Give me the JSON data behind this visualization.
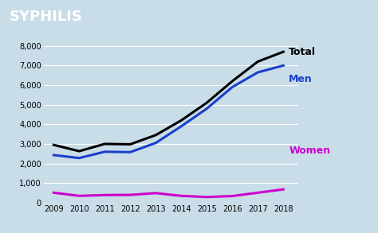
{
  "title": "SYPHILIS",
  "title_bg_color": "#4444cc",
  "title_text_color": "#ffffff",
  "bg_color": "#c8dde8",
  "years": [
    2009,
    2010,
    2011,
    2012,
    2013,
    2014,
    2015,
    2016,
    2017,
    2018
  ],
  "total": [
    2950,
    2630,
    3000,
    2980,
    3450,
    4200,
    5100,
    6200,
    7200,
    7700
  ],
  "men": [
    2430,
    2280,
    2600,
    2580,
    3050,
    3900,
    4800,
    5900,
    6650,
    7000
  ],
  "women": [
    510,
    350,
    390,
    400,
    490,
    350,
    290,
    340,
    510,
    680
  ],
  "total_color": "#000000",
  "men_color": "#1a3fcc",
  "women_color": "#cc00cc",
  "ylim": [
    0,
    8500
  ],
  "yticks": [
    0,
    1000,
    2000,
    3000,
    4000,
    5000,
    6000,
    7000,
    8000
  ],
  "ytick_labels": [
    "0",
    "1,000",
    "2,000",
    "3,000",
    "4,000",
    "5,000",
    "6,000",
    "7,000",
    "8,000"
  ],
  "line_width": 2.2,
  "label_total": "Total",
  "label_men": "Men",
  "label_women": "Women",
  "title_fontsize": 13,
  "label_fontsize": 9,
  "tick_fontsize": 7
}
